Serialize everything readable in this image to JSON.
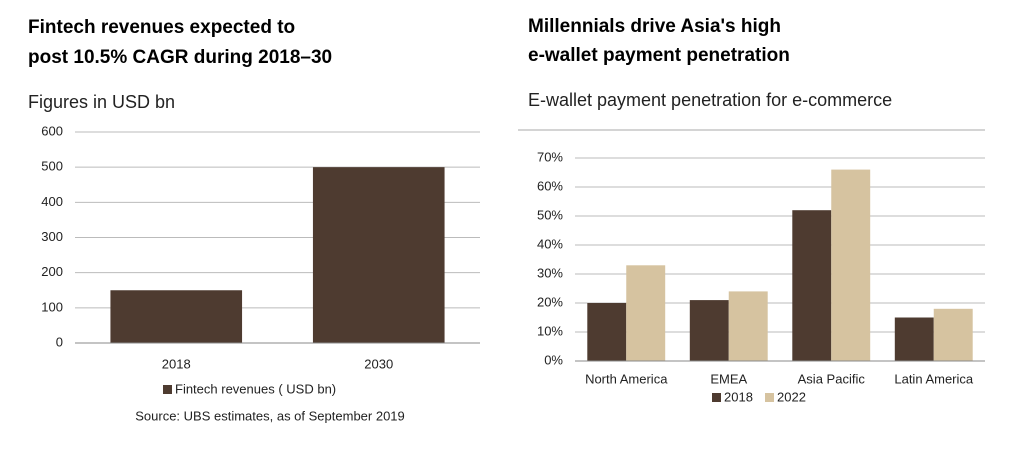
{
  "chart_data": [
    {
      "type": "bar",
      "title": [
        "Fintech revenues expected to",
        "post 10.5% CAGR during 2018–30"
      ],
      "subtitle": "Figures in USD bn",
      "categories": [
        "2018",
        "2030"
      ],
      "series": [
        {
          "name": "Fintech revenues ( USD bn)",
          "color": "#4e3b30",
          "values": [
            150,
            500
          ]
        }
      ],
      "ylim": [
        0,
        600
      ],
      "yticks": [
        0,
        100,
        200,
        300,
        400,
        500,
        600
      ],
      "grid": true,
      "source": "Source: UBS estimates, as of September 2019"
    },
    {
      "type": "bar",
      "title": [
        "Millennials drive Asia's high",
        "e-wallet payment penetration"
      ],
      "subtitle": "E-wallet payment penetration for e-commerce",
      "categories": [
        "North America",
        "EMEA",
        "Asia Pacific",
        "Latin America"
      ],
      "series": [
        {
          "name": "2018",
          "color": "#4e3b30",
          "values": [
            20,
            21,
            52,
            15
          ]
        },
        {
          "name": "2022",
          "color": "#d6c3a0",
          "values": [
            33,
            24,
            66,
            18
          ]
        }
      ],
      "ylim": [
        0,
        70
      ],
      "yticks": [
        {
          "value": 0,
          "label": "0%"
        },
        {
          "value": 10,
          "label": "10%"
        },
        {
          "value": 20,
          "label": "20%"
        },
        {
          "value": 30,
          "label": "30%"
        },
        {
          "value": 40,
          "label": "40%"
        },
        {
          "value": 50,
          "label": "50%"
        },
        {
          "value": 60,
          "label": "60%"
        },
        {
          "value": 70,
          "label": "70%"
        }
      ],
      "grid": true
    }
  ]
}
